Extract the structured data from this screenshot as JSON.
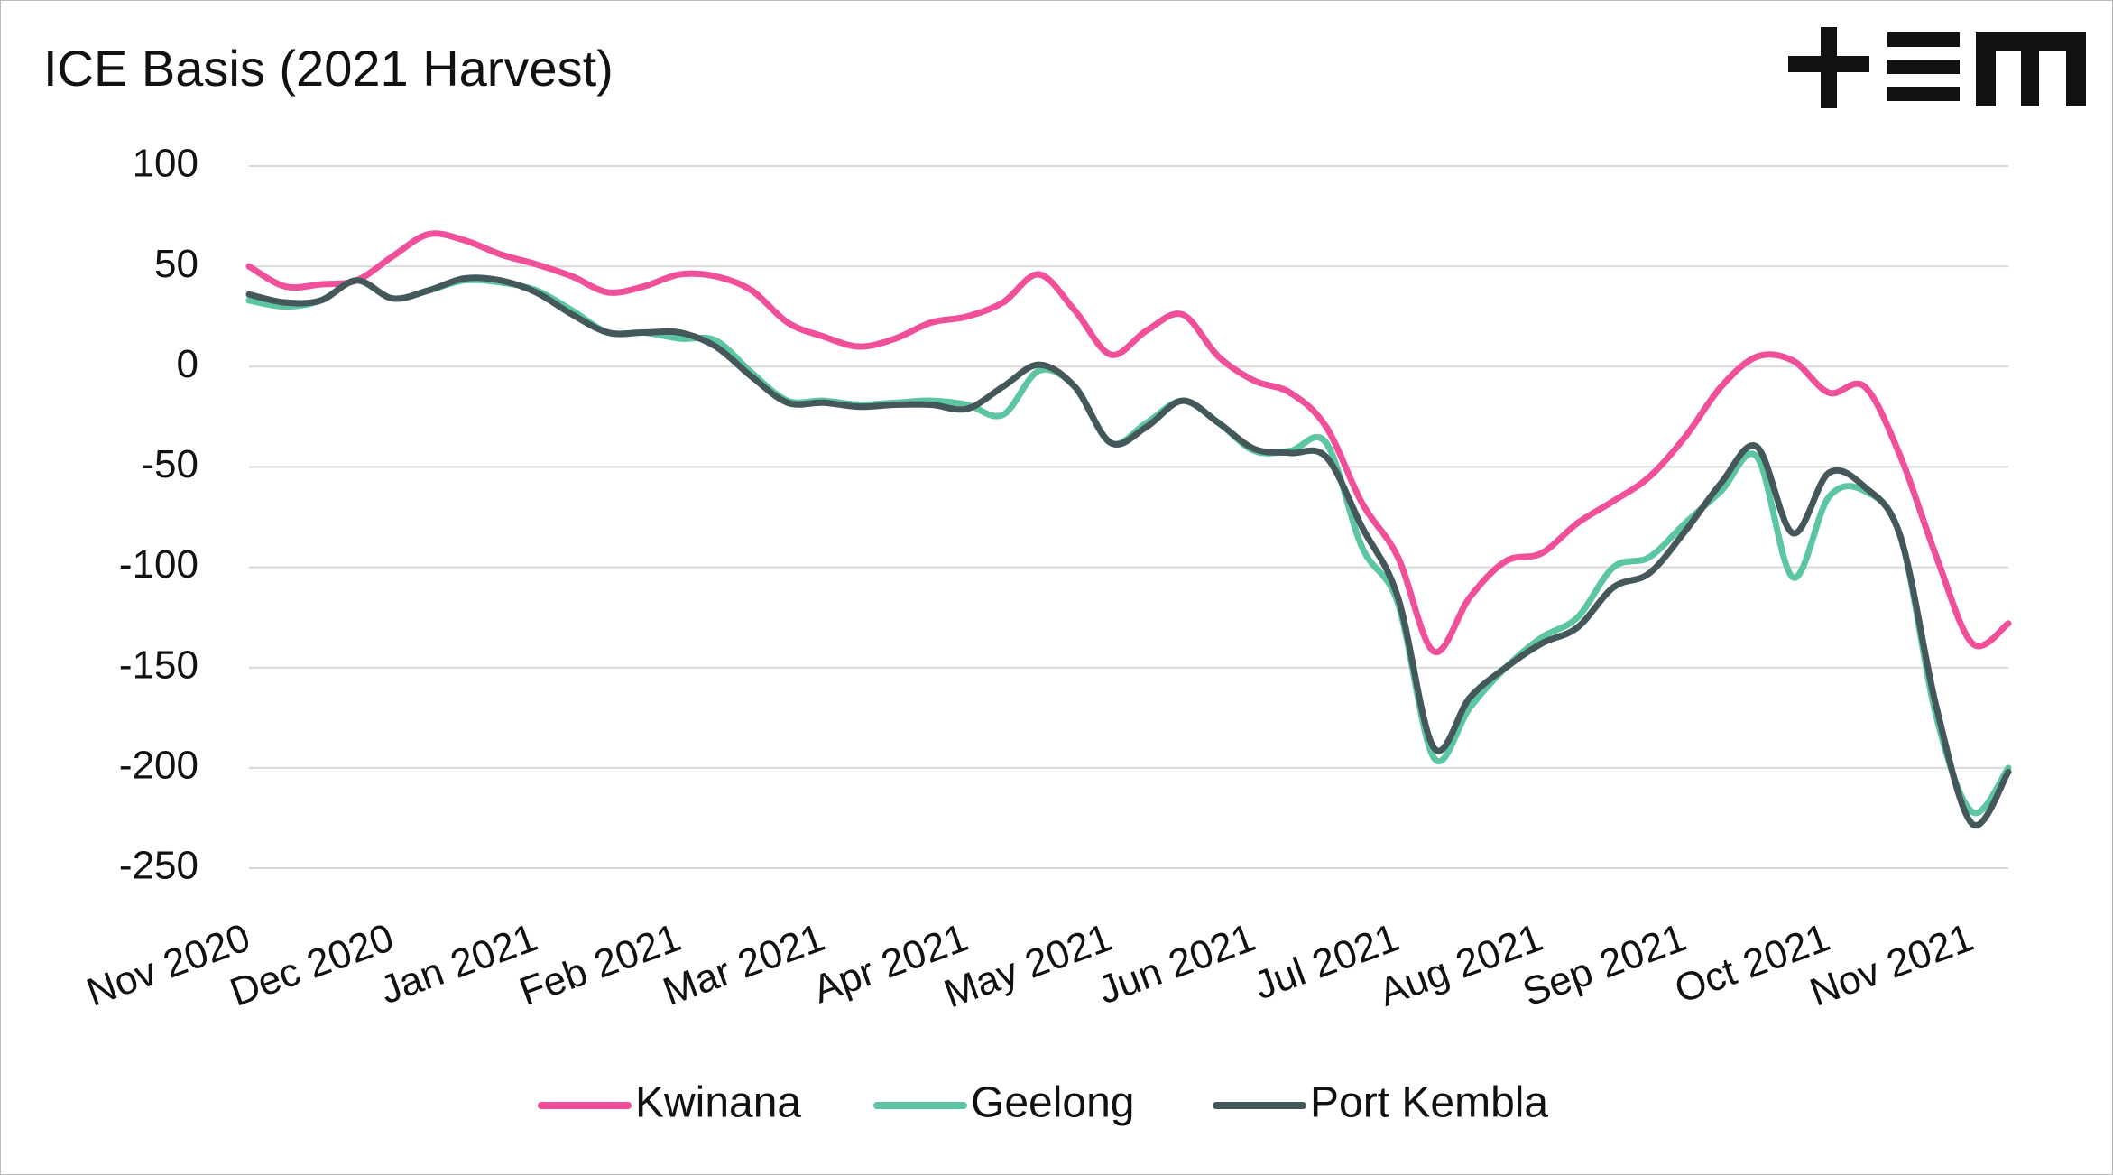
{
  "chart_data": {
    "type": "line",
    "title": "ICE Basis (2021 Harvest)",
    "categories": [
      "Nov 2020",
      null,
      null,
      null,
      "Dec 2020",
      null,
      null,
      null,
      "Jan 2021",
      null,
      null,
      null,
      "Feb 2021",
      null,
      null,
      null,
      "Mar 2021",
      null,
      null,
      null,
      "Apr 2021",
      null,
      null,
      null,
      "May 2021",
      null,
      null,
      null,
      "Jun 2021",
      null,
      null,
      null,
      "Jul 2021",
      null,
      null,
      null,
      "Aug 2021",
      null,
      null,
      null,
      "Sep 2021",
      null,
      null,
      null,
      "Oct 2021",
      null,
      null,
      null,
      "Nov 2021",
      null
    ],
    "series": [
      {
        "name": "Kwinana",
        "color": "#f0509a",
        "values": [
          50,
          40,
          41,
          43,
          55,
          66,
          63,
          56,
          51,
          45,
          37,
          40,
          46,
          45,
          38,
          22,
          15,
          10,
          14,
          22,
          25,
          32,
          46,
          28,
          6,
          18,
          26,
          5,
          -7,
          -13,
          -30,
          -68,
          -95,
          -142,
          -115,
          -97,
          -93,
          -78,
          -67,
          -55,
          -35,
          -10,
          5,
          3,
          -13,
          -10,
          -45,
          -95,
          -138,
          -128
        ]
      },
      {
        "name": "Geelong",
        "color": "#5cc6a1",
        "values": [
          33,
          30,
          33,
          43,
          34,
          38,
          43,
          42,
          38,
          28,
          17,
          17,
          14,
          13,
          -3,
          -17,
          -17,
          -19,
          -18,
          -17,
          -19,
          -24,
          -2,
          -10,
          -38,
          -28,
          -17,
          -28,
          -42,
          -42,
          -38,
          -90,
          -118,
          -195,
          -170,
          -150,
          -135,
          -125,
          -100,
          -95,
          -78,
          -62,
          -45,
          -105,
          -65,
          -62,
          -85,
          -175,
          -222,
          -200
        ]
      },
      {
        "name": "Port Kembla",
        "color": "#44575a",
        "values": [
          36,
          32,
          33,
          43,
          34,
          38,
          44,
          43,
          37,
          26,
          17,
          17,
          17,
          10,
          -5,
          -18,
          -18,
          -20,
          -19,
          -19,
          -21,
          -10,
          1,
          -10,
          -38,
          -30,
          -17,
          -28,
          -41,
          -43,
          -45,
          -80,
          -115,
          -190,
          -165,
          -150,
          -138,
          -130,
          -110,
          -103,
          -82,
          -58,
          -40,
          -83,
          -53,
          -60,
          -85,
          -170,
          -228,
          -202
        ]
      }
    ],
    "ylim": [
      -250,
      100
    ],
    "yticks": [
      100,
      50,
      0,
      -50,
      -100,
      -150,
      -200,
      -250
    ],
    "grid": true,
    "legend": "bottom"
  }
}
